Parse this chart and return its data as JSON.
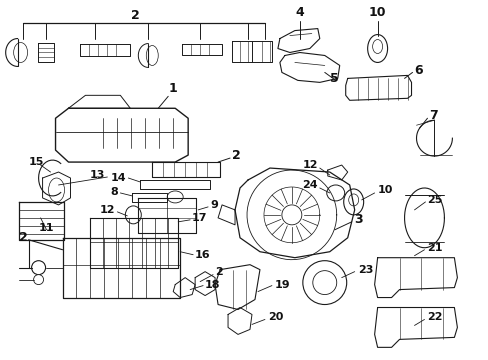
{
  "background_color": "#ffffff",
  "line_color": "#1a1a1a",
  "text_color": "#111111",
  "fig_width": 4.89,
  "fig_height": 3.6,
  "dpi": 100,
  "xmax": 489,
  "ymax": 360
}
